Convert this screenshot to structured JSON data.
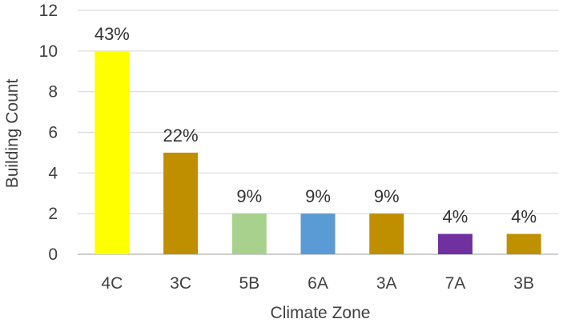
{
  "chart_data": {
    "type": "bar",
    "title": "",
    "xlabel": "Climate Zone",
    "ylabel": "Building Count",
    "ylim": [
      0,
      12
    ],
    "yticks": [
      "0",
      "2",
      "4",
      "6",
      "8",
      "10",
      "12"
    ],
    "grid": true,
    "categories": [
      "4C",
      "3C",
      "5B",
      "6A",
      "3A",
      "7A",
      "3B"
    ],
    "values": [
      10,
      5,
      2,
      2,
      2,
      1,
      1
    ],
    "data_labels": [
      "43%",
      "22%",
      "9%",
      "9%",
      "9%",
      "4%",
      "4%"
    ],
    "colors": [
      "#ffff00",
      "#bf8f00",
      "#a9d18e",
      "#5b9bd5",
      "#bf8f00",
      "#7030a0",
      "#bf9000"
    ]
  }
}
